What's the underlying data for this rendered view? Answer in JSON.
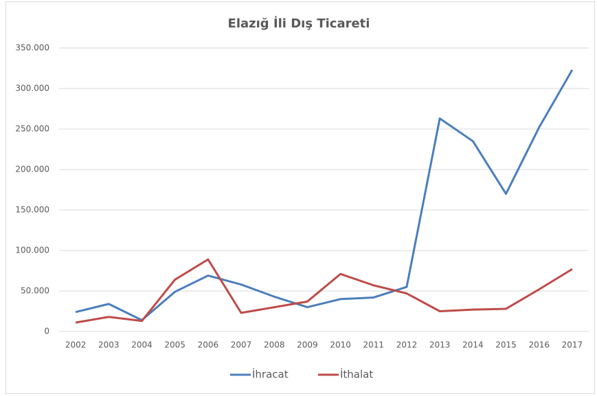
{
  "chart_data": {
    "type": "line",
    "title": "Elazığ İli Dış Ticareti",
    "categories": [
      "2002",
      "2003",
      "2004",
      "2005",
      "2006",
      "2007",
      "2008",
      "2009",
      "2010",
      "2011",
      "2012",
      "2013",
      "2014",
      "2015",
      "2016",
      "2017"
    ],
    "series": [
      {
        "name": "İhracat",
        "color": "#4a7ebb",
        "values": [
          24000,
          34000,
          14000,
          49000,
          69000,
          58000,
          43000,
          30000,
          40000,
          42000,
          55000,
          263000,
          235000,
          170000,
          252000,
          323000
        ]
      },
      {
        "name": "İthalat",
        "color": "#be4b48",
        "values": [
          11000,
          18000,
          13000,
          64000,
          89000,
          23000,
          30000,
          37000,
          71000,
          57000,
          47000,
          25000,
          27000,
          28000,
          52000,
          77000
        ]
      }
    ],
    "ylim": [
      0,
      350000
    ],
    "yticks": [
      0,
      {
        "value": 50000,
        "label": "50.000"
      },
      {
        "value": 100000,
        "label": "100.000"
      },
      {
        "value": 150000,
        "label": "150.000"
      },
      {
        "value": 200000,
        "label": "200.000"
      },
      {
        "value": 250000,
        "label": "250.000"
      },
      {
        "value": 300000,
        "label": "300.000"
      },
      {
        "value": 350000,
        "label": "350.000"
      }
    ],
    "grid": true,
    "legend": "bottom"
  }
}
